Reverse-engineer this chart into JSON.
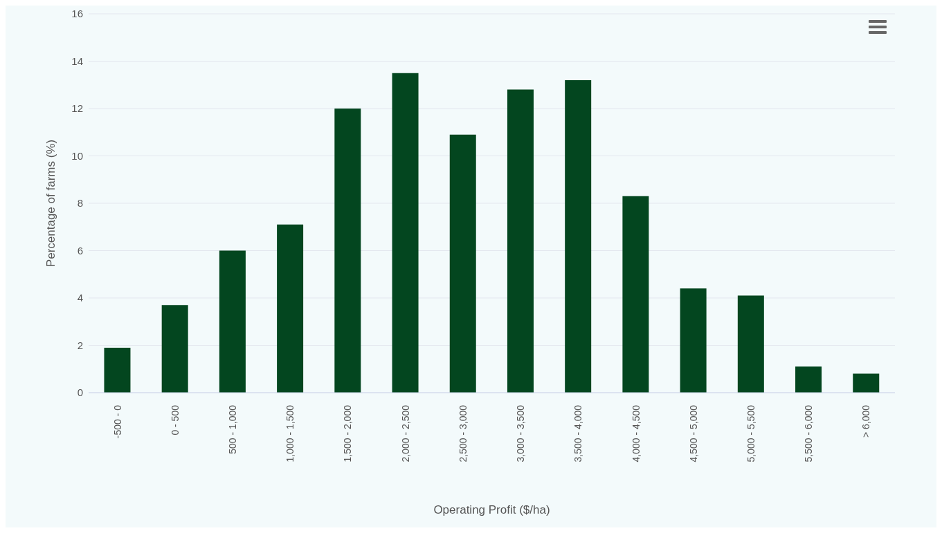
{
  "chart_data": {
    "type": "bar",
    "xlabel": "Operating Profit ($/ha)",
    "ylabel": "Percentage of farms (%)",
    "categories": [
      "-500 - 0",
      "0 - 500",
      "500 - 1,000",
      "1,000 - 1,500",
      "1,500 - 2,000",
      "2,000 - 2,500",
      "2,500 - 3,000",
      "3,000 - 3,500",
      "3,500 - 4,000",
      "4,000 - 4,500",
      "4,500 - 5,000",
      "5,000 - 5,500",
      "5,500 - 6,000",
      "> 6,000"
    ],
    "values": [
      1.9,
      3.7,
      6.0,
      7.1,
      12.0,
      13.5,
      10.9,
      12.8,
      13.2,
      8.3,
      4.4,
      4.1,
      1.1,
      0.8
    ],
    "color": "#03461f",
    "ylim": [
      0,
      16
    ],
    "yticks": [
      0,
      2,
      4,
      6,
      8,
      10,
      12,
      14,
      16
    ],
    "grid": "y"
  }
}
